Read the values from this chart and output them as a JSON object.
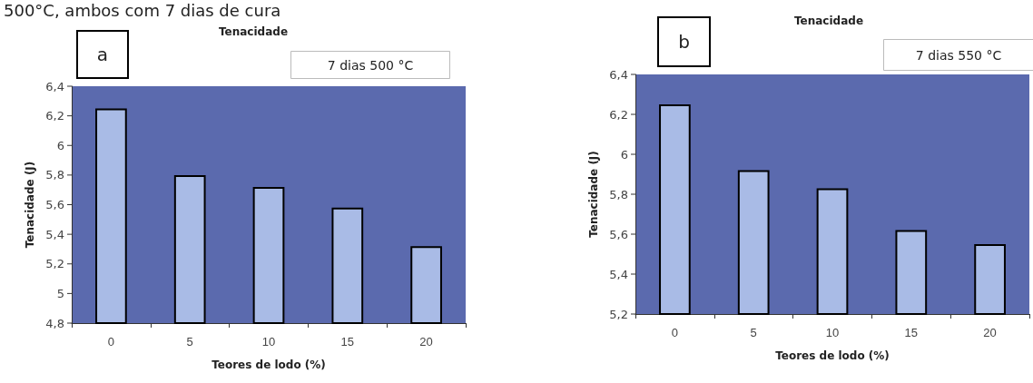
{
  "chart_data": [
    {
      "type": "bar",
      "title": "Tenacidade",
      "xlabel": "Teores de lodo (%)",
      "ylabel": "Tenacidade (J)",
      "categories": [
        "0",
        "5",
        "10",
        "15",
        "20"
      ],
      "values": [
        6.25,
        5.8,
        5.72,
        5.58,
        5.32
      ],
      "color": "#a9bbe6",
      "ylim": [
        4.8,
        6.4
      ],
      "yticks": [
        {
          "value": 4.8,
          "label": "4,8"
        },
        {
          "value": 5,
          "label": "5"
        },
        {
          "value": 5.2,
          "label": "5,2"
        },
        {
          "value": 5.4,
          "label": "5,4"
        },
        {
          "value": 5.6,
          "label": "5,6"
        },
        {
          "value": 5.8,
          "label": "5,8"
        },
        {
          "value": 6,
          "label": "6"
        },
        {
          "value": 6.2,
          "label": "6,2"
        },
        {
          "value": 6.4,
          "label": "6,4"
        }
      ],
      "grid": false,
      "annotations": [
        "a",
        "7 dias 500 °C",
        "500°C, ambos com 7 dias de cura"
      ]
    },
    {
      "type": "bar",
      "title": "Tenacidade",
      "xlabel": "Teores de lodo (%)",
      "ylabel": "Tenacidade (J)",
      "categories": [
        "0",
        "5",
        "10",
        "15",
        "20"
      ],
      "values": [
        6.25,
        5.92,
        5.83,
        5.62,
        5.55
      ],
      "color": "#a9bbe6",
      "ylim": [
        5.2,
        6.4
      ],
      "yticks": [
        {
          "value": 5.2,
          "label": "5,2"
        },
        {
          "value": 5.4,
          "label": "5,4"
        },
        {
          "value": 5.6,
          "label": "5,6"
        },
        {
          "value": 5.8,
          "label": "5,8"
        },
        {
          "value": 6,
          "label": "6"
        },
        {
          "value": 6.2,
          "label": "6,2"
        },
        {
          "value": 6.4,
          "label": "6,4"
        }
      ],
      "grid": false,
      "annotations": [
        "b",
        "7 dias 550 °C"
      ]
    }
  ]
}
